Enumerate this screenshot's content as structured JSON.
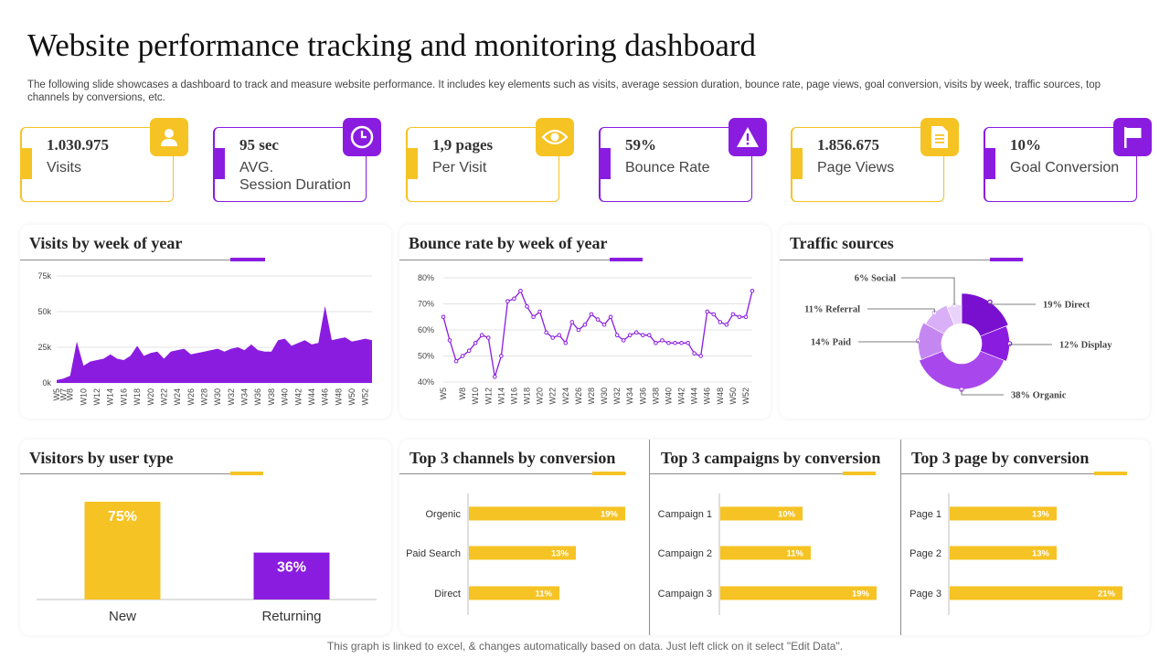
{
  "header": {
    "title": "Website performance tracking and monitoring dashboard",
    "description": "The following slide showcases a dashboard to track and measure website performance. It includes key elements such as visits, average session duration, bounce rate, page views, goal conversion, visits by week, traffic sources, top channels by conversions, etc."
  },
  "kpis": [
    {
      "value": "1.030.975",
      "label": "Visits",
      "icon": "user-icon",
      "color": "#f6c324"
    },
    {
      "value": "95 sec",
      "label": "AVG.\nSession Duration",
      "icon": "clock-icon",
      "color": "#8a1ce0"
    },
    {
      "value": "1,9 pages",
      "label": "Per Visit",
      "icon": "eye-icon",
      "color": "#f6c324"
    },
    {
      "value": "59%",
      "label": "Bounce Rate",
      "icon": "warning-icon",
      "color": "#8a1ce0"
    },
    {
      "value": "1.856.675",
      "label": "Page Views",
      "icon": "document-icon",
      "color": "#f6c324"
    },
    {
      "value": "10%",
      "label": "Goal Conversion",
      "icon": "flag-icon",
      "color": "#8a1ce0"
    }
  ],
  "colors": {
    "yellow": "#f6c324",
    "purple": "#8a1ce0"
  },
  "cards": {
    "visits_title": "Visits by week of year",
    "bounce_title": "Bounce rate by week of year",
    "traffic_title": "Traffic sources",
    "visitors_title": "Visitors by user type",
    "channels_title": "Top 3 channels by conversion",
    "campaigns_title": "Top 3 campaigns by conversion",
    "pages_title": "Top 3 page by conversion"
  },
  "footer": "This graph is linked to excel, & changes automatically based on data. Just left click on it select \"Edit Data\".",
  "chart_data": [
    {
      "type": "area",
      "x": [
        "W5",
        "W7",
        "W8",
        "W9",
        "W10",
        "W11",
        "W12",
        "W13",
        "W14",
        "W15",
        "W16",
        "W17",
        "W18",
        "W19",
        "W20",
        "W21",
        "W22",
        "W23",
        "W24",
        "W25",
        "W26",
        "W27",
        "W28",
        "W29",
        "W30",
        "W31",
        "W32",
        "W33",
        "W34",
        "W35",
        "W36",
        "W37",
        "W38",
        "W39",
        "W40",
        "W41",
        "W42",
        "W43",
        "W44",
        "W45",
        "W46",
        "W47",
        "W48",
        "W49",
        "W50",
        "W51",
        "W52",
        "W53"
      ],
      "x_tick_labels": [
        "W5",
        "W7",
        "W8",
        "W10",
        "W12",
        "W14",
        "W16",
        "W18",
        "W20",
        "W22",
        "W24",
        "W26",
        "W28",
        "W30",
        "W32",
        "W34",
        "W36",
        "W38",
        "W40",
        "W42",
        "W44",
        "W46",
        "W48",
        "W50",
        "W52"
      ],
      "y_ticks": [
        "0k",
        "25k",
        "50k",
        "75k"
      ],
      "values": [
        2,
        3,
        5,
        29,
        12,
        15,
        16,
        17,
        20,
        17,
        16,
        19,
        26,
        19,
        21,
        22,
        17,
        22,
        23,
        24,
        20,
        21,
        22,
        23,
        24,
        22,
        24,
        25,
        23,
        27,
        23,
        22,
        22,
        30,
        31,
        26,
        28,
        30,
        27,
        28,
        54,
        30,
        31,
        32,
        29,
        30,
        31,
        30
      ],
      "ylim": [
        0,
        75
      ],
      "color": "#8a1ce0"
    },
    {
      "type": "line",
      "x": [
        "W5",
        "W6",
        "W7",
        "W8",
        "W9",
        "W10",
        "W11",
        "W12",
        "W13",
        "W14",
        "W15",
        "W16",
        "W17",
        "W18",
        "W19",
        "W20",
        "W21",
        "W22",
        "W23",
        "W24",
        "W25",
        "W26",
        "W27",
        "W28",
        "W29",
        "W30",
        "W31",
        "W32",
        "W33",
        "W34",
        "W35",
        "W36",
        "W37",
        "W38",
        "W39",
        "W40",
        "W41",
        "W42",
        "W43",
        "W44",
        "W45",
        "W46",
        "W47",
        "W48",
        "W49",
        "W50",
        "W51",
        "W52",
        "W53"
      ],
      "x_tick_labels": [
        "W5",
        "W8",
        "W10",
        "W12",
        "W14",
        "W16",
        "W18",
        "W20",
        "W22",
        "W24",
        "W26",
        "W28",
        "W30",
        "W32",
        "W34",
        "W36",
        "W38",
        "W40",
        "W42",
        "W44",
        "W46",
        "W48",
        "W50",
        "W52"
      ],
      "y_ticks": [
        "40%",
        "50%",
        "60%",
        "70%",
        "80%"
      ],
      "values": [
        65,
        56,
        48,
        50,
        52,
        55,
        58,
        57,
        42,
        50,
        71,
        72,
        75,
        69,
        65,
        67,
        59,
        57,
        58,
        55,
        63,
        60,
        62,
        66,
        64,
        62,
        65,
        58,
        56,
        58,
        59,
        58,
        58,
        55,
        56,
        55,
        55,
        55,
        55,
        51,
        50,
        67,
        66,
        63,
        62,
        66,
        65,
        65,
        75
      ],
      "ylim": [
        40,
        80
      ],
      "color": "#8a1ce0"
    },
    {
      "type": "pie",
      "labels": [
        "19% Direct",
        "12% Display",
        "38% Organic",
        "14% Paid",
        "11% Referral",
        "6% Social"
      ],
      "values": [
        19,
        12,
        38,
        14,
        11,
        6
      ],
      "colors": [
        "#7a10cf",
        "#8a1ce0",
        "#a848ec",
        "#c487f2",
        "#d9b0f7",
        "#ead3fb"
      ]
    },
    {
      "type": "bar",
      "categories": [
        "New",
        "Returning"
      ],
      "values": [
        75,
        36
      ],
      "value_labels": [
        "75%",
        "36%"
      ],
      "colors": [
        "#f6c324",
        "#8a1ce0"
      ]
    },
    {
      "type": "bar",
      "orientation": "horizontal",
      "categories": [
        "Orgenic",
        "Paid Search",
        "Direct"
      ],
      "values": [
        19,
        13,
        11
      ],
      "value_labels": [
        "19%",
        "13%",
        "11%"
      ],
      "color": "#f6c324"
    },
    {
      "type": "bar",
      "orientation": "horizontal",
      "categories": [
        "Campaign 1",
        "Campaign 2",
        "Campaign 3"
      ],
      "values": [
        10,
        11,
        19
      ],
      "value_labels": [
        "10%",
        "11%",
        "19%"
      ],
      "color": "#f6c324"
    },
    {
      "type": "bar",
      "orientation": "horizontal",
      "categories": [
        "Page 1",
        "Page 2",
        "Page 3"
      ],
      "values": [
        13,
        13,
        21
      ],
      "value_labels": [
        "13%",
        "13%",
        "21%"
      ],
      "color": "#f6c324"
    }
  ]
}
